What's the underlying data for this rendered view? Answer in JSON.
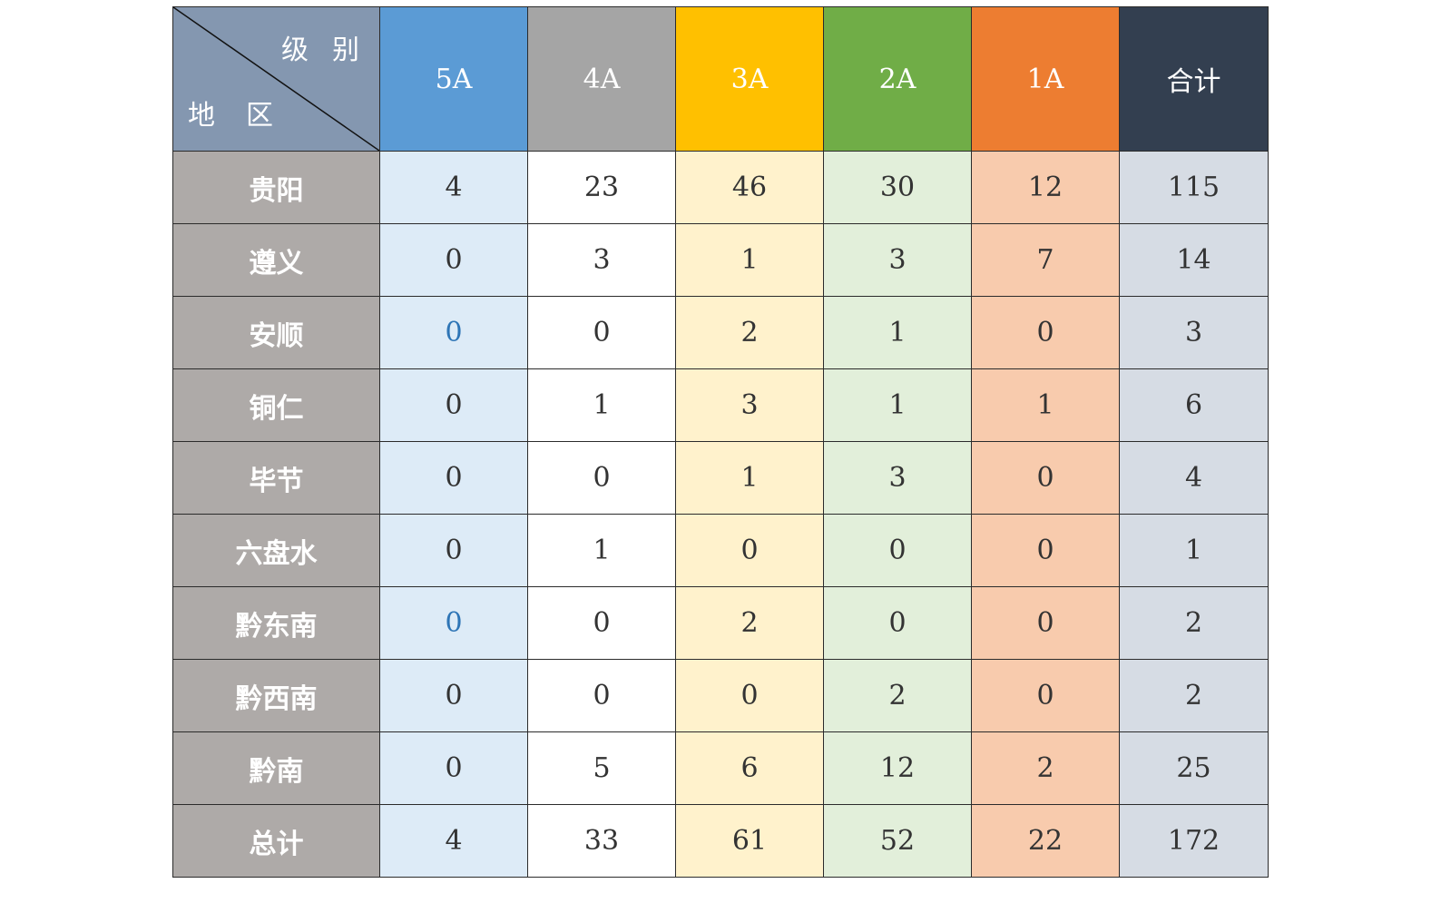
{
  "chart_data": {
    "type": "table",
    "corner": {
      "column_caption": "级别",
      "row_caption": "地区"
    },
    "columns": [
      {
        "label": "5A",
        "header_color": "#5b9bd5",
        "cell_color": "#ddebf7"
      },
      {
        "label": "4A",
        "header_color": "#a5a5a5",
        "cell_color": "#ffffff"
      },
      {
        "label": "3A",
        "header_color": "#ffc000",
        "cell_color": "#fff2cc"
      },
      {
        "label": "2A",
        "header_color": "#70ad47",
        "cell_color": "#e2efda"
      },
      {
        "label": "1A",
        "header_color": "#ed7d31",
        "cell_color": "#f8cbad"
      },
      {
        "label": "合计",
        "header_color": "#333f50",
        "cell_color": "#d6dce4"
      }
    ],
    "corner_color": "#8497b0",
    "region_color": "#aeaaa8",
    "rows": [
      {
        "region": "贵阳",
        "values": [
          4,
          23,
          46,
          30,
          12,
          115
        ]
      },
      {
        "region": "遵义",
        "values": [
          0,
          3,
          1,
          3,
          7,
          14
        ]
      },
      {
        "region": "安顺",
        "values": [
          0,
          0,
          2,
          1,
          0,
          3
        ],
        "blue_first": true
      },
      {
        "region": "铜仁",
        "values": [
          0,
          1,
          3,
          1,
          1,
          6
        ]
      },
      {
        "region": "毕节",
        "values": [
          0,
          0,
          1,
          3,
          0,
          4
        ]
      },
      {
        "region": "六盘水",
        "values": [
          0,
          1,
          0,
          0,
          0,
          1
        ]
      },
      {
        "region": "黔东南",
        "values": [
          0,
          0,
          2,
          0,
          0,
          2
        ],
        "blue_first": true
      },
      {
        "region": "黔西南",
        "values": [
          0,
          0,
          0,
          2,
          0,
          2
        ]
      },
      {
        "region": "黔南",
        "values": [
          0,
          5,
          6,
          12,
          2,
          25
        ]
      },
      {
        "region": "总计",
        "values": [
          4,
          33,
          61,
          52,
          22,
          172
        ]
      }
    ]
  }
}
